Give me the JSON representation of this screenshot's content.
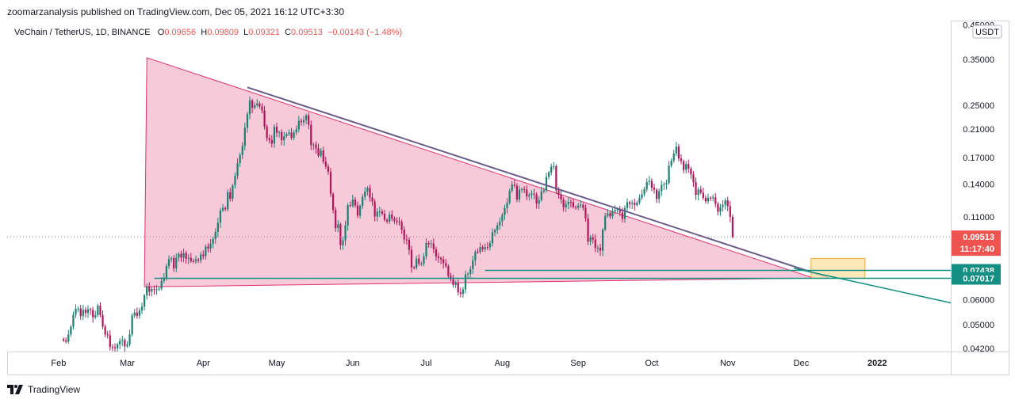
{
  "header": {
    "publisher_line": "zoomarzanalysis published on TradingView.com, Dec 05, 2021 16:12 UTC+3:30"
  },
  "legend": {
    "symbol": "VeChain / TetherUS, 1D, BINANCE",
    "o_label": "O",
    "o_value": "0.09656",
    "h_label": "H",
    "h_value": "0.09809",
    "l_label": "L",
    "l_value": "0.09321",
    "c_label": "C",
    "c_value": "0.09513",
    "change": "−0.00143 (−1.48%)"
  },
  "footer": {
    "brand": "TradingView"
  },
  "colors": {
    "up": "#26a69a",
    "down": "#ef5350",
    "candle_up": "#1e7f73",
    "candle_down": "#b0175b",
    "triangle_fill": "#f4b8cc",
    "triangle_stroke": "#e2306e",
    "support_line": "#138f83",
    "zone_fill": "#fde2a9",
    "zone_stroke": "#e9a53c",
    "price_label_bg": "#ef5350",
    "level_label_bg": "#138f83",
    "current_line": "#ef5350"
  },
  "price_scale": {
    "currency_badge": "USDT",
    "last_price": "0.09513",
    "countdown": "11:17:40",
    "level_upper": "0.07438",
    "level_lower": "0.07017"
  },
  "chart_data": {
    "type": "candlestick",
    "title": "",
    "xlabel": "",
    "ylabel": "",
    "y_scale": "log",
    "ylim": [
      0.041,
      0.465
    ],
    "x_range": [
      "2021-01-11",
      "2022-01-31"
    ],
    "y_ticks": [
      "0.45000",
      "0.35000",
      "0.25000",
      "0.21000",
      "0.17000",
      "0.14000",
      "0.11000",
      "0.06000",
      "0.05000",
      "0.04200"
    ],
    "x_ticks": [
      "Feb",
      "Mar",
      "Apr",
      "May",
      "Jun",
      "Jul",
      "Aug",
      "Sep",
      "Oct",
      "Nov",
      "Dec",
      "2022"
    ],
    "x_tick_dates": [
      "2021-02-01",
      "2021-03-01",
      "2021-04-01",
      "2021-05-01",
      "2021-06-01",
      "2021-07-01",
      "2021-08-01",
      "2021-09-01",
      "2021-10-01",
      "2021-11-01",
      "2021-12-01",
      "2022-01-01"
    ],
    "start_date": "2021-02-03",
    "closes": [
      0.0445,
      0.0441,
      0.0465,
      0.0492,
      0.0537,
      0.0561,
      0.0562,
      0.0532,
      0.0557,
      0.0544,
      0.0559,
      0.0556,
      0.0527,
      0.0536,
      0.0574,
      0.0536,
      0.0492,
      0.0465,
      0.0462,
      0.0424,
      0.0423,
      0.042,
      0.0432,
      0.0443,
      0.0446,
      0.0426,
      0.0431,
      0.0465,
      0.0534,
      0.0546,
      0.0533,
      0.0554,
      0.057,
      0.0619,
      0.0661,
      0.0636,
      0.0649,
      0.0646,
      0.0647,
      0.065,
      0.0688,
      0.0703,
      0.0768,
      0.0807,
      0.0814,
      0.0755,
      0.0817,
      0.0839,
      0.0817,
      0.0844,
      0.081,
      0.0815,
      0.0796,
      0.0794,
      0.0806,
      0.08,
      0.0835,
      0.0826,
      0.0886,
      0.0873,
      0.0904,
      0.0936,
      0.0986,
      0.1055,
      0.1155,
      0.1176,
      0.1165,
      0.132,
      0.1258,
      0.1387,
      0.1489,
      0.1634,
      0.1734,
      0.1854,
      0.2118,
      0.2339,
      0.2588,
      0.2453,
      0.2499,
      0.2531,
      0.2474,
      0.2403,
      0.2135,
      0.1962,
      0.1935,
      0.1886,
      0.2133,
      0.2043,
      0.2049,
      0.1933,
      0.1991,
      0.2023,
      0.2043,
      0.1969,
      0.2047,
      0.2095,
      0.2228,
      0.2206,
      0.2242,
      0.2319,
      0.2165,
      0.1864,
      0.1872,
      0.1822,
      0.1725,
      0.1794,
      0.1653,
      0.1594,
      0.1532,
      0.1304,
      0.1159,
      0.1014,
      0.1043,
      0.0895,
      0.0927,
      0.1035,
      0.12,
      0.1195,
      0.125,
      0.1197,
      0.1111,
      0.1194,
      0.1275,
      0.1326,
      0.1361,
      0.1269,
      0.1233,
      0.1104,
      0.1144,
      0.1146,
      0.1126,
      0.1078,
      0.1065,
      0.1121,
      0.1089,
      0.1072,
      0.1064,
      0.1062,
      0.1002,
      0.0933,
      0.0931,
      0.0865,
      0.076,
      0.0758,
      0.0811,
      0.0782,
      0.0782,
      0.0824,
      0.0909,
      0.0901,
      0.0906,
      0.0869,
      0.0824,
      0.0814,
      0.0807,
      0.0784,
      0.0767,
      0.0713,
      0.0697,
      0.0668,
      0.0678,
      0.0633,
      0.0626,
      0.0647,
      0.0722,
      0.0725,
      0.0751,
      0.0801,
      0.0853,
      0.0851,
      0.0882,
      0.0868,
      0.0882,
      0.0881,
      0.0908,
      0.0983,
      0.1,
      0.1034,
      0.1064,
      0.1118,
      0.1175,
      0.1221,
      0.1333,
      0.1395,
      0.1384,
      0.1251,
      0.1345,
      0.135,
      0.1345,
      0.128,
      0.1296,
      0.1307,
      0.1297,
      0.1214,
      0.1246,
      0.1328,
      0.1339,
      0.1478,
      0.1525,
      0.1592,
      0.1597,
      0.1337,
      0.1295,
      0.1251,
      0.1182,
      0.1209,
      0.123,
      0.1226,
      0.1184,
      0.1177,
      0.1196,
      0.1203,
      0.1178,
      0.1089,
      0.0919,
      0.0947,
      0.0933,
      0.0877,
      0.0878,
      0.0859,
      0.1003,
      0.111,
      0.1131,
      0.1105,
      0.1147,
      0.1159,
      0.1163,
      0.1137,
      0.1087,
      0.1175,
      0.1226,
      0.1212,
      0.1221,
      0.1201,
      0.1224,
      0.1267,
      0.1301,
      0.1351,
      0.1422,
      0.1433,
      0.1365,
      0.1344,
      0.1257,
      0.1329,
      0.1393,
      0.14,
      0.1412,
      0.1605,
      0.1664,
      0.1754,
      0.1844,
      0.1692,
      0.1657,
      0.1555,
      0.1623,
      0.1568,
      0.1504,
      0.1421,
      0.1294,
      0.1346,
      0.1315,
      0.1266,
      0.1234,
      0.1268,
      0.1263,
      0.1271,
      0.1212,
      0.1144,
      0.1184,
      0.1203,
      0.1243,
      0.1191,
      0.1101,
      0.0951
    ]
  },
  "annotations": {
    "triangle": [
      [
        "2021-03-08",
        0.0659
      ],
      [
        "2021-03-09",
        0.354
      ],
      [
        "2021-12-06",
        0.0703
      ]
    ],
    "trendline": [
      [
        "2021-04-19",
        0.285
      ],
      [
        "2021-12-12",
        0.0705
      ]
    ],
    "support_upper": {
      "from": "2021-07-25",
      "price": 0.07438
    },
    "support_lower": {
      "from": "2021-03-12",
      "price": 0.07017
    },
    "support_ray": [
      [
        "2021-11-28",
        0.0755
      ],
      [
        "2022-01-31",
        0.0586
      ]
    ],
    "zone": {
      "from": "2021-12-05",
      "to": "2021-12-27",
      "top": 0.0812,
      "bottom": 0.0702
    }
  }
}
